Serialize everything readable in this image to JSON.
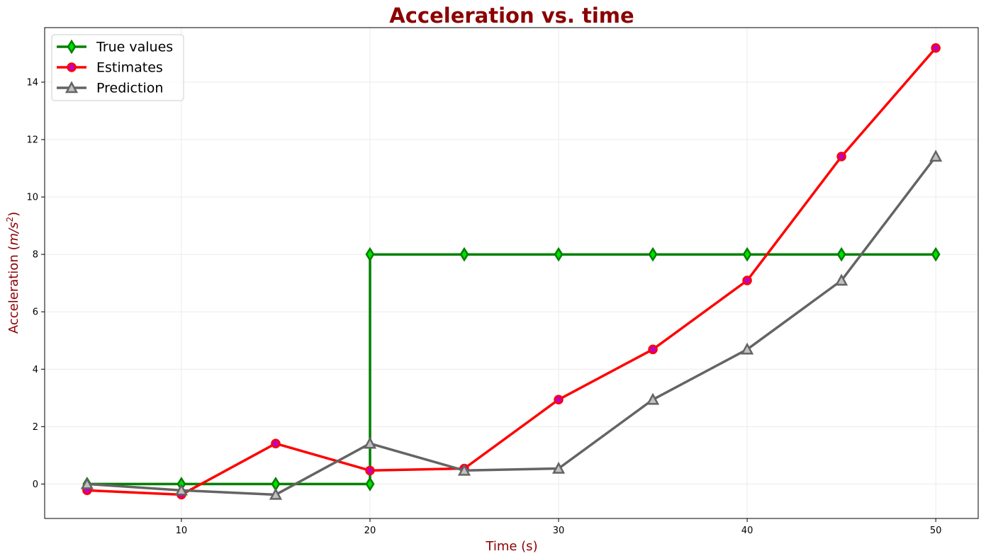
{
  "chart_data": {
    "type": "line",
    "title": "Acceleration vs. time",
    "xlabel": "Time (s)",
    "ylabel": "Acceleration (m/s²)",
    "ylabel_parts": {
      "base": "Acceleration (",
      "var": "m/s",
      "sup": "2",
      "end": ")"
    },
    "x": [
      5,
      10,
      15,
      20,
      25,
      30,
      35,
      40,
      45,
      50
    ],
    "xlim": [
      2.75,
      52.25
    ],
    "ylim": [
      -1.2,
      15.9
    ],
    "xticks": [
      10,
      20,
      30,
      40,
      50
    ],
    "yticks": [
      0,
      2,
      4,
      6,
      8,
      10,
      12,
      14
    ],
    "grid": true,
    "legend_position": "upper left",
    "series": [
      {
        "name": "True values",
        "color": "#008000",
        "marker": "diamond",
        "marker_face": "#00e000",
        "marker_edge": "#008000",
        "drawstyle": "steps-pre",
        "values": [
          0,
          0,
          0,
          0,
          8,
          8,
          8,
          8,
          8,
          8
        ],
        "points": [
          [
            5,
            0
          ],
          [
            10,
            0
          ],
          [
            15,
            0
          ],
          [
            20,
            0
          ],
          [
            20,
            8
          ],
          [
            25,
            8
          ],
          [
            30,
            8
          ],
          [
            35,
            8
          ],
          [
            40,
            8
          ],
          [
            45,
            8
          ],
          [
            50,
            8
          ]
        ],
        "marker_points": [
          [
            5,
            0
          ],
          [
            10,
            0
          ],
          [
            15,
            0
          ],
          [
            20,
            0
          ],
          [
            20,
            8
          ],
          [
            25,
            8
          ],
          [
            30,
            8
          ],
          [
            35,
            8
          ],
          [
            40,
            8
          ],
          [
            45,
            8
          ],
          [
            50,
            8
          ]
        ]
      },
      {
        "name": "Estimates",
        "color": "#ff0000",
        "marker": "circle",
        "marker_face": "#c000c0",
        "marker_edge": "#ff0000",
        "values": [
          -0.22,
          -0.37,
          1.41,
          0.47,
          0.54,
          2.94,
          4.69,
          7.09,
          11.41,
          15.19
        ]
      },
      {
        "name": "Prediction",
        "color": "#646464",
        "marker": "triangle",
        "marker_face": "#c0c0c0",
        "marker_edge": "#646464",
        "values": [
          0,
          -0.22,
          -0.37,
          1.41,
          0.47,
          0.54,
          2.94,
          4.69,
          7.09,
          11.41
        ]
      }
    ]
  }
}
